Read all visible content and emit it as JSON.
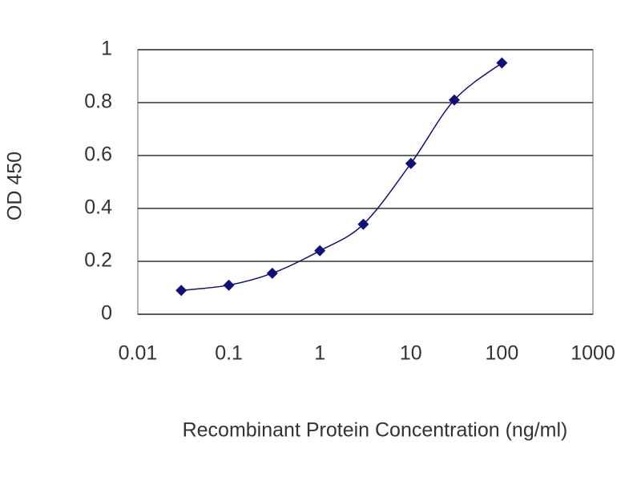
{
  "chart_data": {
    "type": "line",
    "x_label": "Recombinant Protein Concentration (ng/ml)",
    "y_label": "OD 450",
    "x": [
      0.03,
      0.1,
      0.3,
      1,
      3,
      10,
      30,
      100
    ],
    "values": [
      0.09,
      0.11,
      0.155,
      0.24,
      0.34,
      0.57,
      0.81,
      0.95
    ],
    "color": "#10107a",
    "log_x": true,
    "xlim": [
      0.01,
      1000
    ],
    "xticks": [
      0.01,
      0.1,
      1,
      10,
      100,
      1000
    ],
    "ylim": [
      0,
      1
    ],
    "yticks": [
      0,
      0.2,
      0.4,
      0.6,
      0.8,
      1
    ],
    "grid": true
  }
}
